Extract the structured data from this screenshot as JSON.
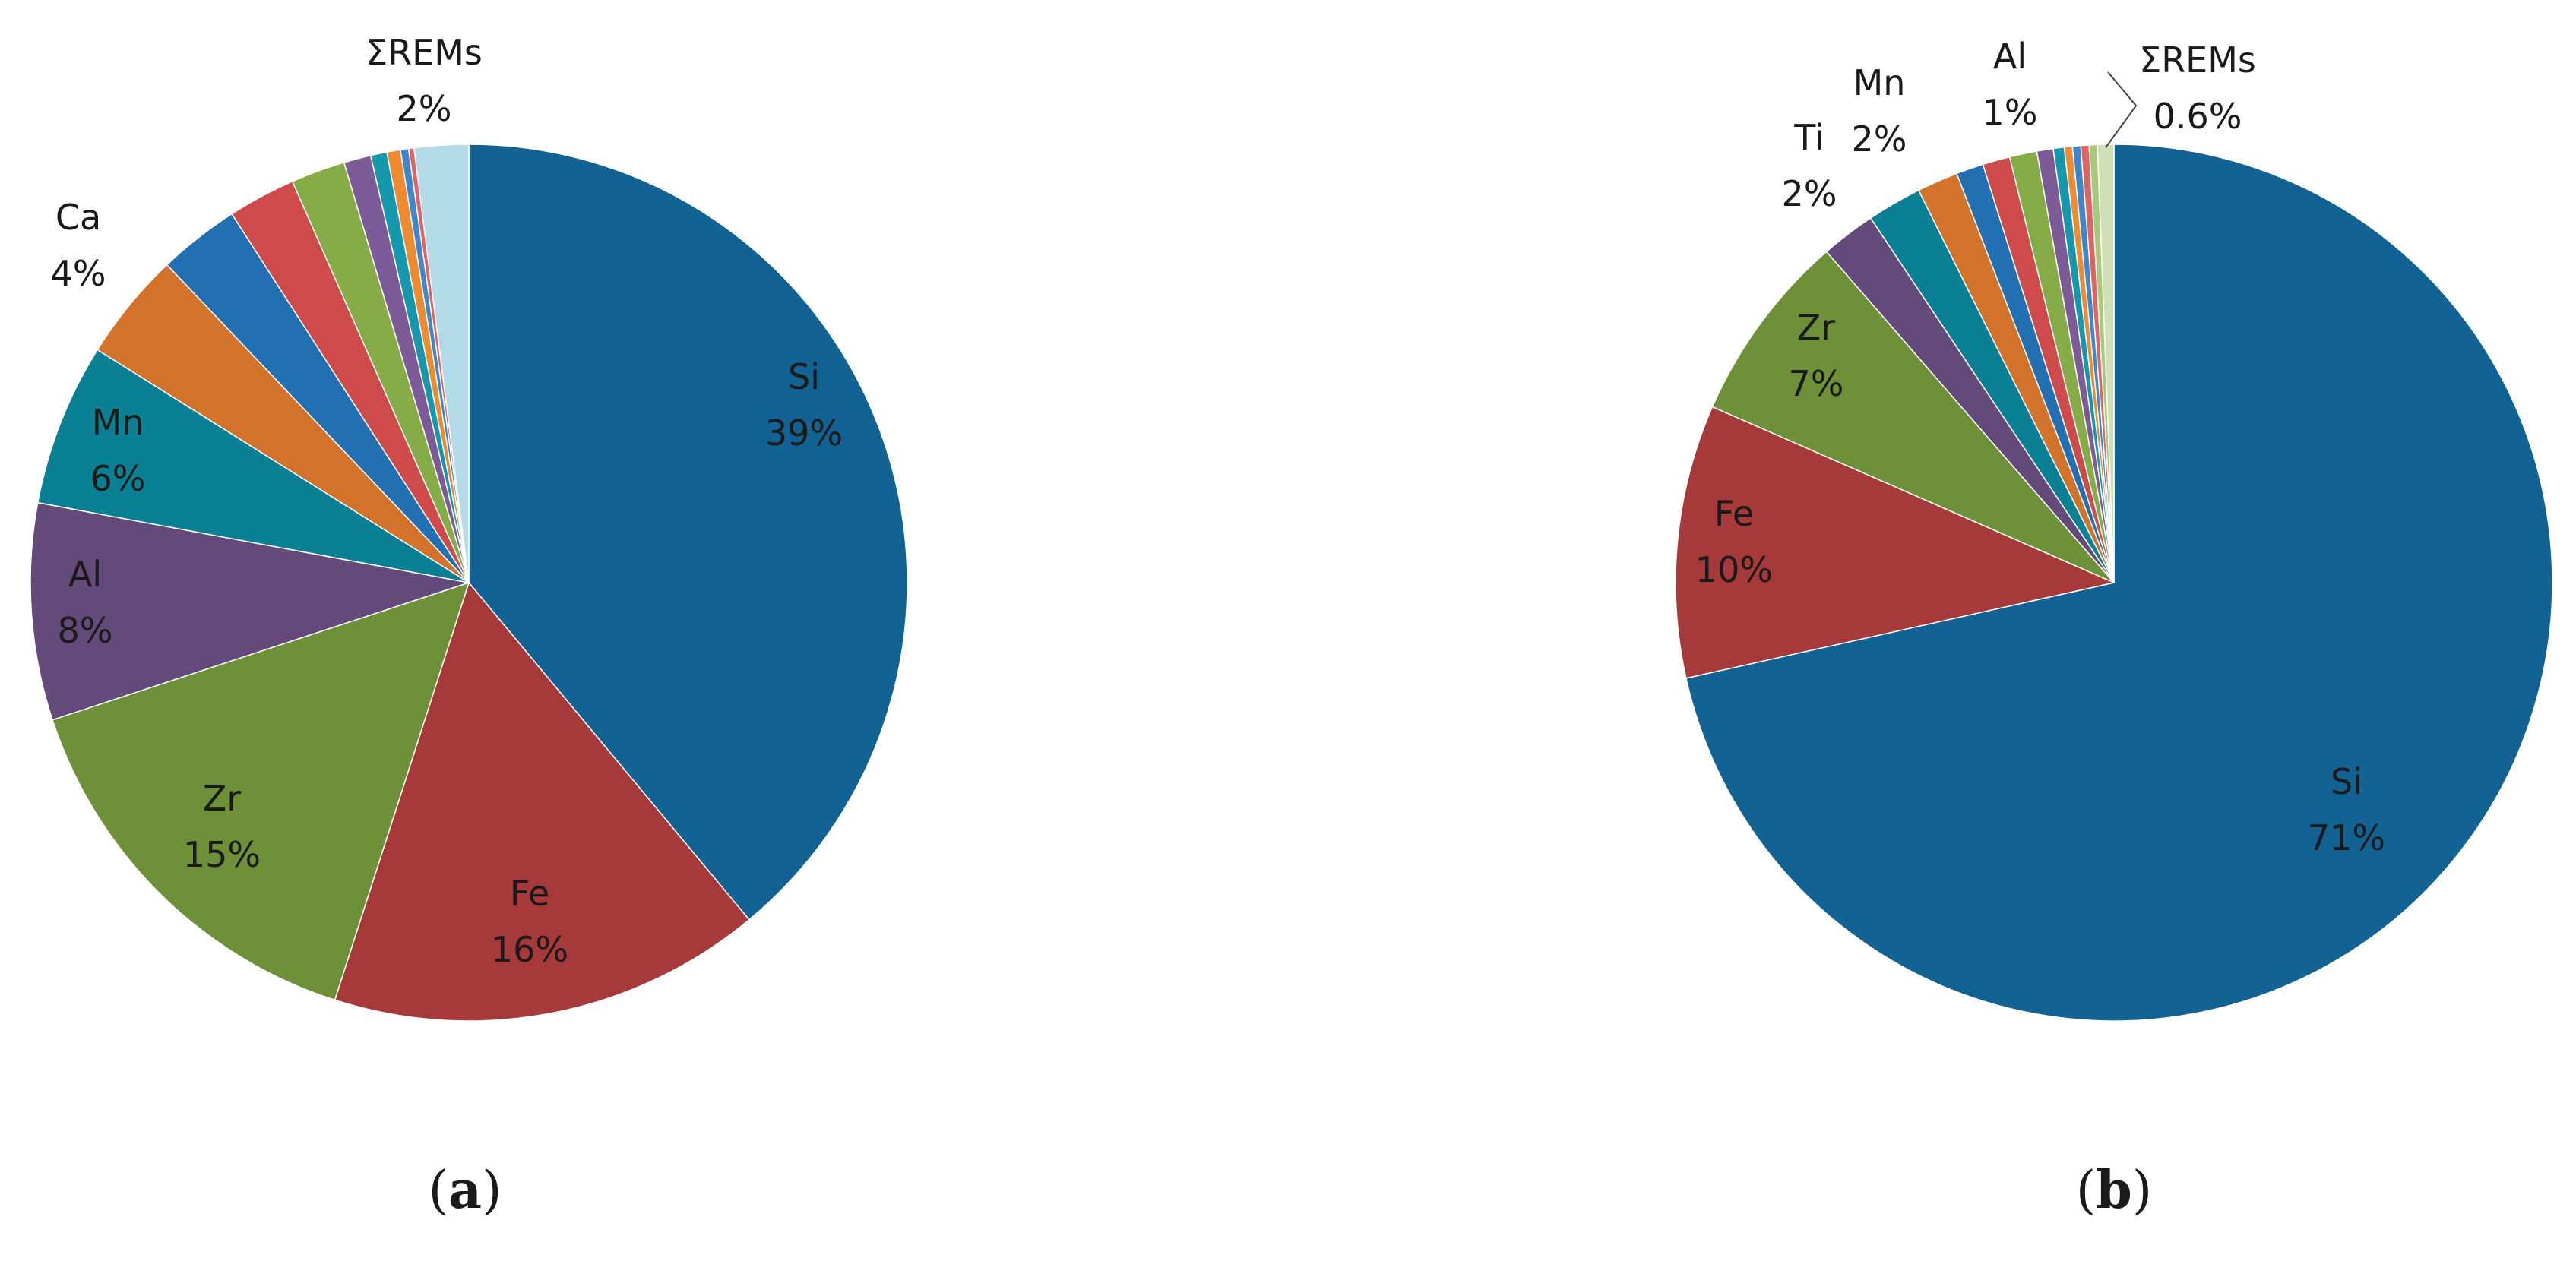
{
  "chart_data": [
    {
      "type": "pie",
      "panel_label": "a",
      "start_angle_deg": 0,
      "direction": "clockwise",
      "slices": [
        {
          "name": "Si",
          "value": 39,
          "color": "#136294",
          "label": "Si",
          "value_label": "39%"
        },
        {
          "name": "Fe",
          "value": 16,
          "color": "#a63939",
          "label": "Fe",
          "value_label": "16%"
        },
        {
          "name": "Zr",
          "value": 15,
          "color": "#6e9038",
          "label": "Zr",
          "value_label": "15%"
        },
        {
          "name": "Al",
          "value": 8,
          "color": "#644a7b",
          "label": "Al",
          "value_label": "8%"
        },
        {
          "name": "Mn",
          "value": 6,
          "color": "#0a8094",
          "label": "Mn",
          "value_label": "6%"
        },
        {
          "name": "Ca",
          "value": 4,
          "color": "#d2722b",
          "label": "Ca",
          "value_label": "4%"
        },
        {
          "name": "",
          "value": 3,
          "color": "#2270b2",
          "label": "",
          "value_label": ""
        },
        {
          "name": "",
          "value": 2.5,
          "color": "#cf4a4a",
          "label": "",
          "value_label": ""
        },
        {
          "name": "",
          "value": 2,
          "color": "#86ac47",
          "label": "",
          "value_label": ""
        },
        {
          "name": "",
          "value": 1,
          "color": "#7d5b98",
          "label": "",
          "value_label": ""
        },
        {
          "name": "",
          "value": 0.6,
          "color": "#1597ad",
          "label": "",
          "value_label": ""
        },
        {
          "name": "",
          "value": 0.5,
          "color": "#ee8a2f",
          "label": "",
          "value_label": ""
        },
        {
          "name": "",
          "value": 0.3,
          "color": "#3f86cf",
          "label": "",
          "value_label": ""
        },
        {
          "name": "",
          "value": 0.2,
          "color": "#e06262",
          "label": "",
          "value_label": ""
        },
        {
          "name": "ΣREMs",
          "value": 2,
          "color": "#b4dbe8",
          "label": "ΣREMs",
          "value_label": "2%"
        }
      ]
    },
    {
      "type": "pie",
      "panel_label": "b",
      "start_angle_deg": 0,
      "direction": "clockwise",
      "slices": [
        {
          "name": "Si",
          "value": 71,
          "color": "#136294",
          "label": "Si",
          "value_label": "71%"
        },
        {
          "name": "Fe",
          "value": 10,
          "color": "#a63939",
          "label": "Fe",
          "value_label": "10%"
        },
        {
          "name": "Zr",
          "value": 7,
          "color": "#6e9038",
          "label": "Zr",
          "value_label": "7%"
        },
        {
          "name": "Ti",
          "value": 2,
          "color": "#644a7b",
          "label": "Ti",
          "value_label": "2%"
        },
        {
          "name": "Mn",
          "value": 2,
          "color": "#0a8094",
          "label": "Mn",
          "value_label": "2%"
        },
        {
          "name": "",
          "value": 1.5,
          "color": "#d2722b",
          "label": "",
          "value_label": ""
        },
        {
          "name": "Al",
          "value": 1,
          "color": "#2270b2",
          "label": "Al",
          "value_label": "1%"
        },
        {
          "name": "",
          "value": 1,
          "color": "#cf4a4a",
          "label": "",
          "value_label": ""
        },
        {
          "name": "",
          "value": 1,
          "color": "#86ac47",
          "label": "",
          "value_label": ""
        },
        {
          "name": "",
          "value": 0.6,
          "color": "#7d5b98",
          "label": "",
          "value_label": ""
        },
        {
          "name": "",
          "value": 0.4,
          "color": "#1597ad",
          "label": "",
          "value_label": ""
        },
        {
          "name": "",
          "value": 0.3,
          "color": "#ee8a2f",
          "label": "",
          "value_label": ""
        },
        {
          "name": "",
          "value": 0.3,
          "color": "#3f86cf",
          "label": "",
          "value_label": ""
        },
        {
          "name": "",
          "value": 0.3,
          "color": "#e06262",
          "label": "",
          "value_label": ""
        },
        {
          "name": "",
          "value": 0.3,
          "color": "#a9c97a",
          "label": "",
          "value_label": ""
        },
        {
          "name": "ΣREMs",
          "value": 0.6,
          "color": "#cfe0b6",
          "label": "ΣREMs",
          "value_label": "0.6%"
        }
      ]
    }
  ]
}
